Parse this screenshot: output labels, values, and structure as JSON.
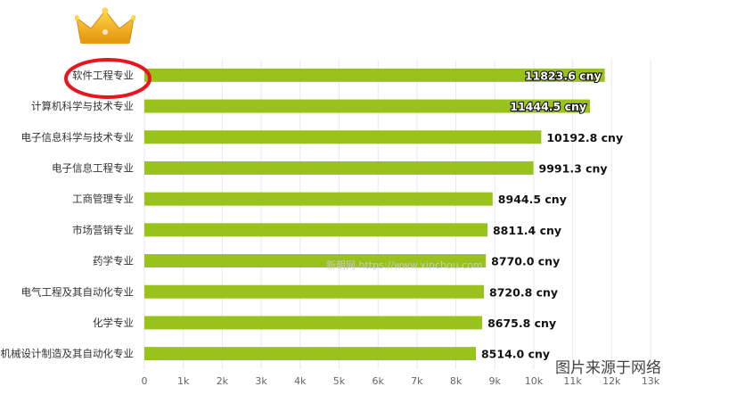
{
  "chart_data": {
    "type": "bar",
    "orientation": "horizontal",
    "categories": [
      "软件工程专业",
      "计算机科学与技术专业",
      "电子信息科学与技术专业",
      "电子信息工程专业",
      "工商管理专业",
      "市场营销专业",
      "药学专业",
      "电气工程及其自动化专业",
      "化学专业",
      "机械设计制造及其自动化专业"
    ],
    "values": [
      11823.6,
      11444.5,
      10192.8,
      9991.3,
      8944.5,
      8811.4,
      8770.0,
      8720.8,
      8675.8,
      8514.0
    ],
    "value_labels": [
      "11823.6 cny",
      "11444.5 cny",
      "10192.8 cny",
      "9991.3 cny",
      "8944.5 cny",
      "8811.4 cny",
      "8770.0 cny",
      "8720.8 cny",
      "8675.8 cny",
      "8514.0 cny"
    ],
    "xlim": [
      0,
      13000
    ],
    "xticks": [
      0,
      1000,
      2000,
      3000,
      4000,
      5000,
      6000,
      7000,
      8000,
      9000,
      10000,
      11000,
      12000,
      13000
    ],
    "xtick_labels": [
      "0",
      "1k",
      "2k",
      "3k",
      "4k",
      "5k",
      "6k",
      "7k",
      "8k",
      "9k",
      "10k",
      "11k",
      "12k",
      "13k"
    ],
    "grid": true,
    "title": "",
    "xlabel": "",
    "ylabel": ""
  },
  "colors": {
    "bar": "#99c31c",
    "grid": "#e9e9e9",
    "highlight": "#e8141e",
    "crown": "#f2b01e"
  },
  "overlay": {
    "watermark": "新朝网 https://www.xinchou.com",
    "caption": "图片来源于网络",
    "highlighted_category": "软件工程专业",
    "decoration_icon": "crown-icon"
  }
}
